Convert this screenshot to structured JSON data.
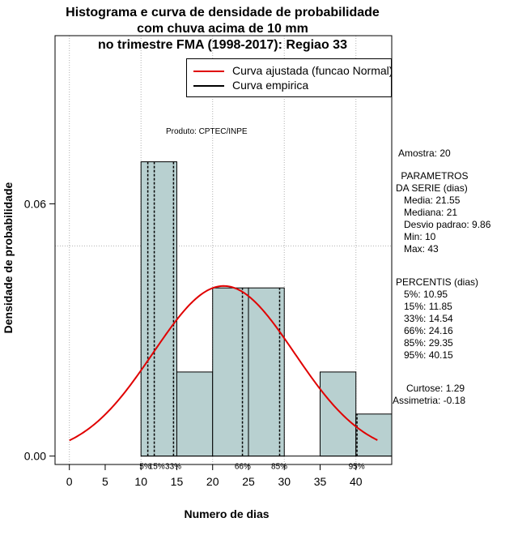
{
  "chart_data": {
    "type": "histogram",
    "title_lines": [
      "Histograma e curva de densidade de probabilidade",
      "com chuva acima de 10 mm",
      "no trimestre FMA (1998-2017): Regiao 33"
    ],
    "xlabel": "Numero de dias",
    "ylabel": "Densidade de probabilidade",
    "xlim": [
      -2,
      45
    ],
    "ylim": [
      -0.002,
      0.1
    ],
    "x_ticks": [
      0,
      5,
      10,
      15,
      20,
      25,
      30,
      35,
      40
    ],
    "x_tick_labels": [
      "0",
      "5",
      "10",
      "15",
      "20",
      "25",
      "30",
      "35",
      "40"
    ],
    "y_ticks": [
      0.0,
      0.06
    ],
    "y_tick_labels": [
      "0.00",
      "0.06"
    ],
    "grid": true,
    "grid_x": [
      0,
      10,
      20,
      30,
      40
    ],
    "grid_y": [
      0.05,
      0.1
    ],
    "bins": [
      {
        "x0": 10,
        "x1": 15,
        "density": 0.07
      },
      {
        "x0": 15,
        "x1": 20,
        "density": 0.02
      },
      {
        "x0": 20,
        "x1": 25,
        "density": 0.04
      },
      {
        "x0": 25,
        "x1": 30,
        "density": 0.04
      },
      {
        "x0": 30,
        "x1": 35,
        "density": 0.0
      },
      {
        "x0": 35,
        "x1": 40,
        "density": 0.02
      },
      {
        "x0": 40,
        "x1": 45,
        "density": 0.01
      }
    ],
    "normal_curve": {
      "mean": 21.55,
      "sd": 9.86,
      "x_range": [
        0,
        43
      ]
    },
    "percentile_lines": [
      {
        "label": "5%",
        "value": 10.95
      },
      {
        "label": "15%",
        "value": 11.85
      },
      {
        "label": "33%",
        "value": 14.54
      },
      {
        "label": "66%",
        "value": 24.16
      },
      {
        "label": "85%",
        "value": 29.35
      },
      {
        "label": "95%",
        "value": 40.15
      }
    ],
    "percentile_axis_labels": [
      {
        "text": "5%",
        "x": 10.6
      },
      {
        "text": "15%",
        "x": 12.2
      },
      {
        "text": "33%",
        "x": 14.5
      },
      {
        "text": "66%",
        "x": 24.2
      },
      {
        "text": "85%",
        "x": 29.3
      },
      {
        "text": "95%",
        "x": 40.1
      }
    ],
    "legend": [
      {
        "label": "Curva ajustada (funcao Normal)",
        "color": "#e00000"
      },
      {
        "label": "Curva empirica",
        "color": "#000000"
      }
    ],
    "legend_position": "top-right",
    "produto": "Produto: CPTEC/INPE",
    "bar_color": "#b8d0d0",
    "curve_color": "#e00000"
  },
  "side_panel": {
    "amostra": "Amostra: 20",
    "parametros_title1": " PARAMETROS",
    "parametros_title2": "DA SERIE (dias)",
    "media": "   Media: 21.55",
    "mediana": "   Mediana: 21",
    "desvio": "   Desvio padrao: 9.86",
    "min": "   Min: 10",
    "max": "   Max: 43",
    "percentis_title": "PERCENTIS (dias)",
    "p5": "   5%: 10.95",
    "p15": "   15%: 11.85",
    "p33": "   33%: 14.54",
    "p66": "   66%: 24.16",
    "p85": "   85%: 29.35",
    "p95": "   95%: 40.15",
    "curtose": "   Curtose: 1.29",
    "assimetria": "Assimetria: -0.18"
  }
}
